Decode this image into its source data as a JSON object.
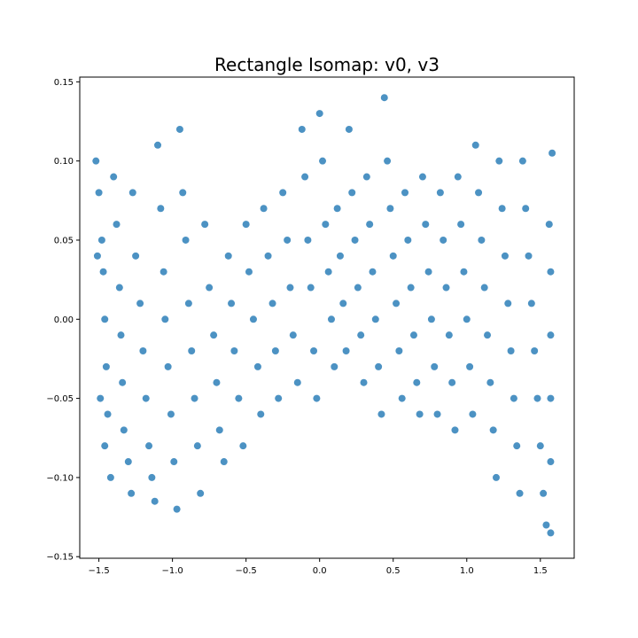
{
  "chart_data": {
    "type": "scatter",
    "title": "Rectangle Isomap: v0, v3",
    "xlabel": "",
    "ylabel": "",
    "xlim": [
      -1.63,
      1.73
    ],
    "ylim": [
      -0.151,
      0.153
    ],
    "xticks": [
      -1.5,
      -1.0,
      -0.5,
      0.0,
      0.5,
      1.0,
      1.5
    ],
    "xtick_labels": [
      "−1.5",
      "−1.0",
      "−0.5",
      "0.0",
      "0.5",
      "1.0",
      "1.5"
    ],
    "yticks": [
      -0.15,
      -0.1,
      -0.05,
      0.0,
      0.05,
      0.1,
      0.15
    ],
    "ytick_labels": [
      "−0.15",
      "−0.10",
      "−0.05",
      "0.00",
      "0.05",
      "0.10",
      "0.15"
    ],
    "grid": false,
    "color": "#1f77b4",
    "series": [
      {
        "points": [
          [
            -1.52,
            0.1
          ],
          [
            -1.5,
            0.08
          ],
          [
            -1.48,
            0.05
          ],
          [
            -1.47,
            0.03
          ],
          [
            -1.46,
            0.0
          ],
          [
            -1.45,
            -0.03
          ],
          [
            -1.44,
            -0.06
          ],
          [
            -1.46,
            -0.08
          ],
          [
            -1.42,
            -0.1
          ],
          [
            -1.4,
            0.09
          ],
          [
            -1.38,
            0.06
          ],
          [
            -1.36,
            0.02
          ],
          [
            -1.35,
            -0.01
          ],
          [
            -1.34,
            -0.04
          ],
          [
            -1.33,
            -0.07
          ],
          [
            -1.3,
            -0.09
          ],
          [
            -1.28,
            -0.11
          ],
          [
            -1.27,
            0.08
          ],
          [
            -1.25,
            0.04
          ],
          [
            -1.22,
            0.01
          ],
          [
            -1.2,
            -0.02
          ],
          [
            -1.18,
            -0.05
          ],
          [
            -1.16,
            -0.08
          ],
          [
            -1.14,
            -0.1
          ],
          [
            -1.12,
            -0.115
          ],
          [
            -1.1,
            0.11
          ],
          [
            -1.08,
            0.07
          ],
          [
            -1.06,
            0.03
          ],
          [
            -1.05,
            0.0
          ],
          [
            -1.03,
            -0.03
          ],
          [
            -1.01,
            -0.06
          ],
          [
            -0.99,
            -0.09
          ],
          [
            -0.97,
            -0.12
          ],
          [
            -0.95,
            0.12
          ],
          [
            -0.93,
            0.08
          ],
          [
            -0.91,
            0.05
          ],
          [
            -0.89,
            0.01
          ],
          [
            -0.87,
            -0.02
          ],
          [
            -0.85,
            -0.05
          ],
          [
            -0.83,
            -0.08
          ],
          [
            -0.81,
            -0.11
          ],
          [
            -0.78,
            0.06
          ],
          [
            -0.75,
            0.02
          ],
          [
            -0.72,
            -0.01
          ],
          [
            -0.7,
            -0.04
          ],
          [
            -0.68,
            -0.07
          ],
          [
            -0.65,
            -0.09
          ],
          [
            -0.62,
            0.04
          ],
          [
            -0.6,
            0.01
          ],
          [
            -0.58,
            -0.02
          ],
          [
            -0.55,
            -0.05
          ],
          [
            -0.52,
            -0.08
          ],
          [
            -0.5,
            0.06
          ],
          [
            -0.48,
            0.03
          ],
          [
            -0.45,
            0.0
          ],
          [
            -0.42,
            -0.03
          ],
          [
            -0.4,
            -0.06
          ],
          [
            -0.38,
            0.07
          ],
          [
            -0.35,
            0.04
          ],
          [
            -0.32,
            0.01
          ],
          [
            -0.3,
            -0.02
          ],
          [
            -0.28,
            -0.05
          ],
          [
            -0.25,
            0.08
          ],
          [
            -0.22,
            0.05
          ],
          [
            -0.2,
            0.02
          ],
          [
            -0.18,
            -0.01
          ],
          [
            -0.15,
            -0.04
          ],
          [
            -0.12,
            0.12
          ],
          [
            -0.1,
            0.09
          ],
          [
            -0.08,
            0.05
          ],
          [
            -0.06,
            0.02
          ],
          [
            -0.04,
            -0.02
          ],
          [
            -0.02,
            -0.05
          ],
          [
            0.0,
            0.13
          ],
          [
            0.02,
            0.1
          ],
          [
            0.04,
            0.06
          ],
          [
            0.06,
            0.03
          ],
          [
            0.08,
            0.0
          ],
          [
            0.1,
            -0.03
          ],
          [
            0.12,
            0.07
          ],
          [
            0.14,
            0.04
          ],
          [
            0.16,
            0.01
          ],
          [
            0.18,
            -0.02
          ],
          [
            0.2,
            0.12
          ],
          [
            0.22,
            0.08
          ],
          [
            0.24,
            0.05
          ],
          [
            0.26,
            0.02
          ],
          [
            0.28,
            -0.01
          ],
          [
            0.3,
            -0.04
          ],
          [
            0.32,
            0.09
          ],
          [
            0.34,
            0.06
          ],
          [
            0.36,
            0.03
          ],
          [
            0.38,
            0.0
          ],
          [
            0.4,
            -0.03
          ],
          [
            0.42,
            -0.06
          ],
          [
            0.44,
            0.14
          ],
          [
            0.46,
            0.1
          ],
          [
            0.48,
            0.07
          ],
          [
            0.5,
            0.04
          ],
          [
            0.52,
            0.01
          ],
          [
            0.54,
            -0.02
          ],
          [
            0.56,
            -0.05
          ],
          [
            0.58,
            0.08
          ],
          [
            0.6,
            0.05
          ],
          [
            0.62,
            0.02
          ],
          [
            0.64,
            -0.01
          ],
          [
            0.66,
            -0.04
          ],
          [
            0.68,
            -0.06
          ],
          [
            0.7,
            0.09
          ],
          [
            0.72,
            0.06
          ],
          [
            0.74,
            0.03
          ],
          [
            0.76,
            0.0
          ],
          [
            0.78,
            -0.03
          ],
          [
            0.8,
            -0.06
          ],
          [
            0.82,
            0.08
          ],
          [
            0.84,
            0.05
          ],
          [
            0.86,
            0.02
          ],
          [
            0.88,
            -0.01
          ],
          [
            0.9,
            -0.04
          ],
          [
            0.92,
            -0.07
          ],
          [
            0.94,
            0.09
          ],
          [
            0.96,
            0.06
          ],
          [
            0.98,
            0.03
          ],
          [
            1.0,
            0.0
          ],
          [
            1.02,
            -0.03
          ],
          [
            1.04,
            -0.06
          ],
          [
            1.06,
            0.11
          ],
          [
            1.08,
            0.08
          ],
          [
            1.1,
            0.05
          ],
          [
            1.12,
            0.02
          ],
          [
            1.14,
            -0.01
          ],
          [
            1.16,
            -0.04
          ],
          [
            1.18,
            -0.07
          ],
          [
            1.2,
            -0.1
          ],
          [
            1.22,
            0.1
          ],
          [
            1.24,
            0.07
          ],
          [
            1.26,
            0.04
          ],
          [
            1.28,
            0.01
          ],
          [
            1.3,
            -0.02
          ],
          [
            1.32,
            -0.05
          ],
          [
            1.34,
            -0.08
          ],
          [
            1.36,
            -0.11
          ],
          [
            1.38,
            0.1
          ],
          [
            1.4,
            0.07
          ],
          [
            1.42,
            0.04
          ],
          [
            1.44,
            0.01
          ],
          [
            1.46,
            -0.02
          ],
          [
            1.48,
            -0.05
          ],
          [
            1.5,
            -0.08
          ],
          [
            1.52,
            -0.11
          ],
          [
            1.54,
            -0.13
          ],
          [
            1.56,
            0.06
          ],
          [
            1.57,
            0.03
          ],
          [
            1.57,
            -0.01
          ],
          [
            1.57,
            -0.05
          ],
          [
            1.57,
            -0.09
          ],
          [
            1.57,
            -0.135
          ],
          [
            1.58,
            0.105
          ],
          [
            -1.51,
            0.04
          ],
          [
            -1.49,
            -0.05
          ]
        ]
      }
    ]
  }
}
